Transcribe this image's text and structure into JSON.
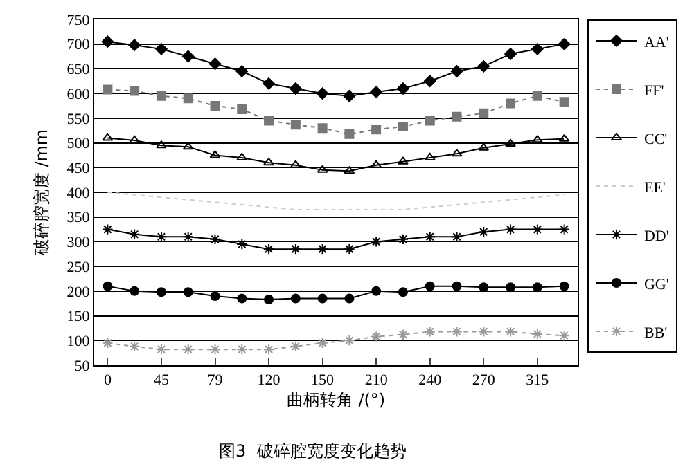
{
  "chart_data": {
    "type": "line",
    "xlabel": "曲柄转角 /(°)",
    "ylabel": "破碎腔宽度 /mm",
    "annotations": [
      "图3  破碎腔宽度变化趋势"
    ],
    "categories": [
      "0",
      null,
      "45",
      null,
      "79",
      null,
      "120",
      null,
      "150",
      null,
      "210",
      null,
      "240",
      null,
      "270",
      null,
      "315",
      null
    ],
    "ylim": [
      50,
      750
    ],
    "yticks": [
      50,
      100,
      150,
      200,
      250,
      300,
      350,
      400,
      450,
      500,
      550,
      600,
      650,
      700,
      750
    ],
    "grid": "y",
    "legend": "right",
    "series": [
      {
        "name": "AA'",
        "color": "#000000",
        "marker": "diamond",
        "line_style": "solid",
        "values": [
          705,
          698,
          690,
          675,
          660,
          645,
          620,
          610,
          600,
          595,
          603,
          610,
          625,
          645,
          655,
          680,
          690,
          700
        ]
      },
      {
        "name": "FF'",
        "color": "#777777",
        "marker": "square",
        "line_style": "dotted",
        "values": [
          608,
          605,
          595,
          590,
          575,
          568,
          545,
          537,
          530,
          518,
          527,
          533,
          545,
          553,
          560,
          580,
          595,
          583
        ]
      },
      {
        "name": "CC'",
        "color": "#000000",
        "marker": "triangle",
        "line_style": "solid",
        "values": [
          510,
          505,
          495,
          492,
          475,
          470,
          460,
          455,
          445,
          443,
          455,
          462,
          470,
          478,
          490,
          498,
          506,
          508
        ]
      },
      {
        "name": "EE'",
        "color": "#cccccc",
        "marker": "none",
        "line_style": "dotted",
        "values": [
          400,
          395,
          390,
          385,
          380,
          375,
          370,
          365,
          365,
          365,
          365,
          365,
          370,
          375,
          380,
          385,
          390,
          395
        ]
      },
      {
        "name": "DD'",
        "color": "#000000",
        "marker": "cross",
        "line_style": "solid",
        "values": [
          325,
          315,
          310,
          310,
          305,
          295,
          285,
          285,
          285,
          285,
          300,
          305,
          310,
          310,
          320,
          325,
          325,
          325
        ]
      },
      {
        "name": "GG'",
        "color": "#000000",
        "marker": "circle",
        "line_style": "solid",
        "values": [
          210,
          200,
          198,
          198,
          190,
          185,
          183,
          185,
          185,
          185,
          200,
          198,
          210,
          210,
          208,
          208,
          208,
          210
        ]
      },
      {
        "name": "BB'",
        "color": "#999999",
        "marker": "cross",
        "line_style": "dotted",
        "values": [
          95,
          88,
          82,
          82,
          82,
          82,
          82,
          88,
          95,
          100,
          108,
          112,
          118,
          118,
          118,
          118,
          113,
          110
        ]
      }
    ]
  }
}
